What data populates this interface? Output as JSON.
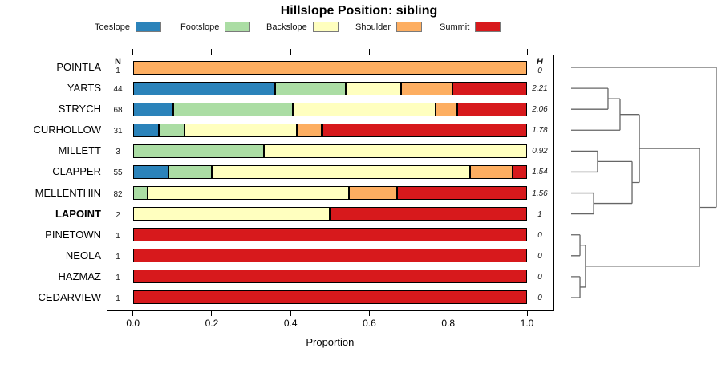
{
  "title": "Hillslope Position: sibling",
  "legend": {
    "items": [
      {
        "label": "Toeslope",
        "color": "#2B83BA"
      },
      {
        "label": "Footslope",
        "color": "#ABDDA4"
      },
      {
        "label": "Backslope",
        "color": "#FFFFBF"
      },
      {
        "label": "Shoulder",
        "color": "#FDAE61"
      },
      {
        "label": "Summit",
        "color": "#D7191C"
      }
    ]
  },
  "columns": {
    "n_header": "N",
    "h_header": "H"
  },
  "x_axis": {
    "label": "Proportion",
    "ticks": [
      "0.0",
      "0.2",
      "0.4",
      "0.6",
      "0.8",
      "1.0"
    ],
    "range": [
      0,
      1
    ]
  },
  "chart_data": {
    "type": "bar",
    "subtype": "horizontal-stacked-proportion-with-dendrogram",
    "title": "Hillslope Position: sibling",
    "xlabel": "Proportion",
    "xlim": [
      0,
      1
    ],
    "grid": false,
    "legend_position": "top",
    "categories": [
      "Toeslope",
      "Footslope",
      "Backslope",
      "Shoulder",
      "Summit"
    ],
    "colors": {
      "Toeslope": "#2B83BA",
      "Footslope": "#ABDDA4",
      "Backslope": "#FFFFBF",
      "Shoulder": "#FDAE61",
      "Summit": "#D7191C"
    },
    "rows": [
      {
        "label": "POINTLA",
        "n": "1",
        "h": "0",
        "bold": false,
        "segments": [
          {
            "cat": "Shoulder",
            "v": 1.0
          }
        ]
      },
      {
        "label": "YARTS",
        "n": "44",
        "h": "2.21",
        "bold": false,
        "segments": [
          {
            "cat": "Toeslope",
            "v": 0.36
          },
          {
            "cat": "Footslope",
            "v": 0.18
          },
          {
            "cat": "Backslope",
            "v": 0.14
          },
          {
            "cat": "Shoulder",
            "v": 0.13
          },
          {
            "cat": "Summit",
            "v": 0.19
          }
        ]
      },
      {
        "label": "STRYCH",
        "n": "68",
        "h": "2.06",
        "bold": false,
        "segments": [
          {
            "cat": "Toeslope",
            "v": 0.103
          },
          {
            "cat": "Footslope",
            "v": 0.302
          },
          {
            "cat": "Backslope",
            "v": 0.362
          },
          {
            "cat": "Shoulder",
            "v": 0.056
          },
          {
            "cat": "Summit",
            "v": 0.177
          }
        ]
      },
      {
        "label": "CURHOLLOW",
        "n": "31",
        "h": "1.78",
        "bold": false,
        "segments": [
          {
            "cat": "Toeslope",
            "v": 0.065
          },
          {
            "cat": "Footslope",
            "v": 0.065
          },
          {
            "cat": "Backslope",
            "v": 0.285
          },
          {
            "cat": "Shoulder",
            "v": 0.065
          },
          {
            "cat": "Summit",
            "v": 0.52
          }
        ]
      },
      {
        "label": "MILLETT",
        "n": "3",
        "h": "0.92",
        "bold": false,
        "segments": [
          {
            "cat": "Footslope",
            "v": 0.333
          },
          {
            "cat": "Backslope",
            "v": 0.667
          }
        ]
      },
      {
        "label": "CLAPPER",
        "n": "55",
        "h": "1.54",
        "bold": false,
        "segments": [
          {
            "cat": "Toeslope",
            "v": 0.091
          },
          {
            "cat": "Footslope",
            "v": 0.109
          },
          {
            "cat": "Backslope",
            "v": 0.655
          },
          {
            "cat": "Shoulder",
            "v": 0.109
          },
          {
            "cat": "Summit",
            "v": 0.036
          }
        ]
      },
      {
        "label": "MELLENTHIN",
        "n": "82",
        "h": "1.56",
        "bold": false,
        "segments": [
          {
            "cat": "Footslope",
            "v": 0.037
          },
          {
            "cat": "Backslope",
            "v": 0.512
          },
          {
            "cat": "Shoulder",
            "v": 0.122
          },
          {
            "cat": "Summit",
            "v": 0.329
          }
        ]
      },
      {
        "label": "LAPOINT",
        "n": "2",
        "h": "1",
        "bold": true,
        "segments": [
          {
            "cat": "Backslope",
            "v": 0.5
          },
          {
            "cat": "Summit",
            "v": 0.5
          }
        ]
      },
      {
        "label": "PINETOWN",
        "n": "1",
        "h": "0",
        "bold": false,
        "segments": [
          {
            "cat": "Summit",
            "v": 1.0
          }
        ]
      },
      {
        "label": "NEOLA",
        "n": "1",
        "h": "0",
        "bold": false,
        "segments": [
          {
            "cat": "Summit",
            "v": 1.0
          }
        ]
      },
      {
        "label": "HAZMAZ",
        "n": "1",
        "h": "0",
        "bold": false,
        "segments": [
          {
            "cat": "Summit",
            "v": 1.0
          }
        ]
      },
      {
        "label": "CEDARVIEW",
        "n": "1",
        "h": "0",
        "bold": false,
        "segments": [
          {
            "cat": "Summit",
            "v": 1.0
          }
        ]
      }
    ],
    "dendrogram": {
      "orientation": "right",
      "leaf_order": [
        "POINTLA",
        "YARTS",
        "STRYCH",
        "CURHOLLOW",
        "MILLETT",
        "CLAPPER",
        "MELLENTHIN",
        "LAPOINT",
        "PINETOWN",
        "NEOLA",
        "HAZMAZ",
        "CEDARVIEW"
      ],
      "merges": [
        {
          "id": "m1",
          "a": "YARTS",
          "b": "STRYCH",
          "h": 0.254
        },
        {
          "id": "m2",
          "a": "m1",
          "b": "CURHOLLOW",
          "h": 0.337
        },
        {
          "id": "m3",
          "a": "MILLETT",
          "b": "CLAPPER",
          "h": 0.182
        },
        {
          "id": "m4",
          "a": "MELLENTHIN",
          "b": "LAPOINT",
          "h": 0.155
        },
        {
          "id": "m5",
          "a": "m3",
          "b": "m4",
          "h": 0.42
        },
        {
          "id": "m6",
          "a": "m2",
          "b": "m5",
          "h": 0.47
        },
        {
          "id": "m7",
          "a": "PINETOWN",
          "b": "NEOLA",
          "h": 0.061
        },
        {
          "id": "m8",
          "a": "HAZMAZ",
          "b": "CEDARVIEW",
          "h": 0.061
        },
        {
          "id": "m9",
          "a": "m7",
          "b": "m8",
          "h": 0.099
        },
        {
          "id": "m10",
          "a": "m6",
          "b": "m9",
          "h": 0.884
        },
        {
          "id": "m11",
          "a": "POINTLA",
          "b": "m10",
          "h": 1.0
        }
      ]
    }
  }
}
